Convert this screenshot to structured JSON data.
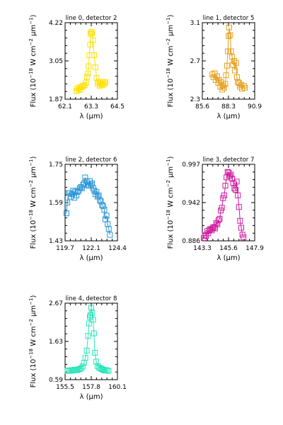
{
  "chart_data": [
    {
      "type": "line",
      "title": "line 0, detector 2",
      "xlabel": "λ (μm)",
      "ylabel_parts": [
        "Flux (10",
        "−18",
        " W cm",
        "−2",
        "μm",
        "−1",
        ")"
      ],
      "xlim": [
        62.1,
        64.5
      ],
      "ylim": [
        1.87,
        4.22
      ],
      "xticks": [
        "62.1",
        "63.3",
        "64.5"
      ],
      "yticks": [
        "1.87",
        "3.05",
        "4.22"
      ],
      "color": "#ffe100",
      "series": [
        {
          "x": [
            62.62,
            62.66,
            62.72,
            62.75,
            62.81,
            62.85,
            62.9,
            62.95,
            63.0,
            63.07,
            63.1,
            63.15,
            63.18,
            63.21,
            63.25,
            63.27,
            63.31,
            63.34,
            63.38,
            63.43,
            63.49,
            63.54,
            63.6,
            63.63,
            63.69,
            63.74,
            63.78,
            63.82,
            63.86,
            63.91,
            63.95
          ],
          "y": [
            2.12,
            2.2,
            2.15,
            2.23,
            2.17,
            2.24,
            2.27,
            2.28,
            2.3,
            2.38,
            2.56,
            2.66,
            2.88,
            3.22,
            3.55,
            3.88,
            3.94,
            3.9,
            3.68,
            3.22,
            2.85,
            2.52,
            2.34,
            2.4,
            2.28,
            2.35,
            2.3,
            2.4,
            2.32,
            2.36,
            2.4
          ]
        }
      ]
    },
    {
      "type": "line",
      "title": "line 1, detector 5",
      "xlabel": "λ (μm)",
      "ylabel_parts": [
        "Flux (10",
        "−18",
        " W cm",
        "−2",
        "μm",
        "−1",
        ")"
      ],
      "xlim": [
        85.6,
        90.9
      ],
      "ylim": [
        2.3,
        3.1
      ],
      "xticks": [
        "85.6",
        "88.3",
        "90.9"
      ],
      "yticks": [
        "2.3",
        "2.7",
        "3.1"
      ],
      "color": "#e69f1c",
      "series": [
        {
          "x": [
            86.62,
            86.73,
            86.85,
            86.95,
            87.1,
            87.22,
            87.3,
            87.42,
            87.5,
            87.62,
            87.7,
            87.8,
            87.92,
            88.0,
            88.1,
            88.18,
            88.26,
            88.32,
            88.42,
            88.5,
            88.62,
            88.7,
            88.82,
            88.9,
            89.02,
            89.1,
            89.2,
            89.3,
            89.4,
            89.52,
            89.62,
            89.8,
            89.9
          ],
          "y": [
            2.56,
            2.53,
            2.57,
            2.5,
            2.54,
            2.47,
            2.5,
            2.43,
            2.48,
            2.4,
            2.44,
            2.42,
            2.46,
            2.55,
            2.65,
            2.8,
            2.96,
            3.05,
            2.97,
            2.8,
            2.74,
            2.66,
            2.7,
            2.6,
            2.68,
            2.53,
            2.48,
            2.47,
            2.43,
            2.45,
            2.41,
            2.44,
            2.42
          ]
        }
      ]
    },
    {
      "type": "line",
      "title": "line 2, detector 6",
      "xlabel": "λ (μm)",
      "ylabel_parts": [
        "Flux (10",
        "−18",
        " W cm",
        "−2",
        "μm",
        "−1",
        ")"
      ],
      "xlim": [
        119.7,
        124.4
      ],
      "ylim": [
        1.43,
        1.75
      ],
      "xticks": [
        "119.7",
        "122.1",
        "124.4"
      ],
      "yticks": [
        "1.43",
        "1.59",
        "1.75"
      ],
      "color": "#2a95d6",
      "series": [
        {
          "x": [
            119.82,
            119.9,
            120.02,
            120.12,
            120.22,
            120.32,
            120.42,
            120.52,
            120.62,
            120.72,
            120.82,
            120.92,
            121.02,
            121.12,
            121.22,
            121.32,
            121.42,
            121.5,
            121.62,
            121.72,
            121.82,
            121.92,
            122.02,
            122.12,
            122.22,
            122.32,
            122.42,
            122.52,
            122.62,
            122.72,
            122.82,
            122.92,
            123.02,
            123.12,
            123.22,
            123.32,
            123.42,
            123.52,
            123.62,
            123.72
          ],
          "y": [
            1.545,
            1.59,
            1.63,
            1.63,
            1.615,
            1.625,
            1.64,
            1.61,
            1.635,
            1.62,
            1.635,
            1.64,
            1.65,
            1.655,
            1.65,
            1.665,
            1.67,
            1.695,
            1.68,
            1.665,
            1.66,
            1.68,
            1.665,
            1.67,
            1.65,
            1.64,
            1.625,
            1.635,
            1.615,
            1.62,
            1.6,
            1.595,
            1.58,
            1.575,
            1.56,
            1.52,
            1.535,
            1.5,
            1.48,
            1.455
          ]
        }
      ]
    },
    {
      "type": "line",
      "title": "line 3, detector 7",
      "xlabel": "λ (μm)",
      "ylabel_parts": [
        "Flux (10",
        "−18",
        " W cm",
        "−2",
        "μm",
        "−1",
        ")"
      ],
      "xlim": [
        143.3,
        147.9
      ],
      "ylim": [
        0.886,
        0.997
      ],
      "xticks": [
        "143.3",
        "145.6",
        "147.9"
      ],
      "yticks": [
        "0.886",
        "0.942",
        "0.997"
      ],
      "color": "#d01a9e",
      "series": [
        {
          "x": [
            143.42,
            143.52,
            143.62,
            143.72,
            143.82,
            143.92,
            144.02,
            144.12,
            144.22,
            144.32,
            144.42,
            144.52,
            144.62,
            144.72,
            144.82,
            144.92,
            145.02,
            145.12,
            145.22,
            145.32,
            145.42,
            145.52,
            145.62,
            145.72,
            145.82,
            145.92,
            146.02,
            146.12,
            146.22,
            146.32,
            146.42,
            146.52,
            146.62,
            146.72,
            146.82,
            146.92
          ],
          "y": [
            0.89,
            0.894,
            0.893,
            0.9,
            0.897,
            0.902,
            0.903,
            0.901,
            0.905,
            0.906,
            0.904,
            0.912,
            0.91,
            0.916,
            0.918,
            0.93,
            0.934,
            0.948,
            0.952,
            0.966,
            0.978,
            0.986,
            0.985,
            0.98,
            0.982,
            0.976,
            0.97,
            0.962,
            0.96,
            0.972,
            0.952,
            0.935,
            0.915,
            0.905,
            0.895,
            0.891
          ]
        }
      ]
    },
    {
      "type": "line",
      "title": "line 4, detector 8",
      "xlabel": "λ (μm)",
      "ylabel_parts": [
        "Flux (10",
        "−18",
        " W cm",
        "−2",
        "μm",
        "−1",
        ")"
      ],
      "xlim": [
        155.5,
        160.1
      ],
      "ylim": [
        0.59,
        2.67
      ],
      "xticks": [
        "155.5",
        "157.8",
        "160.1"
      ],
      "yticks": [
        "0.59",
        "1.63",
        "2.67"
      ],
      "color": "#27e4b8",
      "series": [
        {
          "x": [
            155.72,
            155.84,
            155.96,
            156.08,
            156.2,
            156.32,
            156.44,
            156.56,
            156.68,
            156.8,
            156.92,
            157.04,
            157.16,
            157.28,
            157.4,
            157.52,
            157.6,
            157.68,
            157.74,
            157.8,
            157.88,
            157.96,
            158.04,
            158.12,
            158.24,
            158.36,
            158.48,
            158.6,
            158.72,
            158.84,
            158.96,
            159.08,
            159.2,
            159.32
          ],
          "y": [
            0.83,
            0.84,
            0.83,
            0.85,
            0.84,
            0.86,
            0.85,
            0.86,
            0.87,
            0.88,
            0.9,
            0.95,
            1.05,
            1.18,
            1.38,
            1.78,
            2.12,
            2.3,
            2.35,
            2.55,
            2.4,
            2.22,
            1.85,
            1.32,
            1.08,
            0.96,
            0.92,
            0.9,
            0.88,
            0.86,
            0.84,
            0.85,
            0.84,
            0.83
          ]
        }
      ]
    }
  ]
}
